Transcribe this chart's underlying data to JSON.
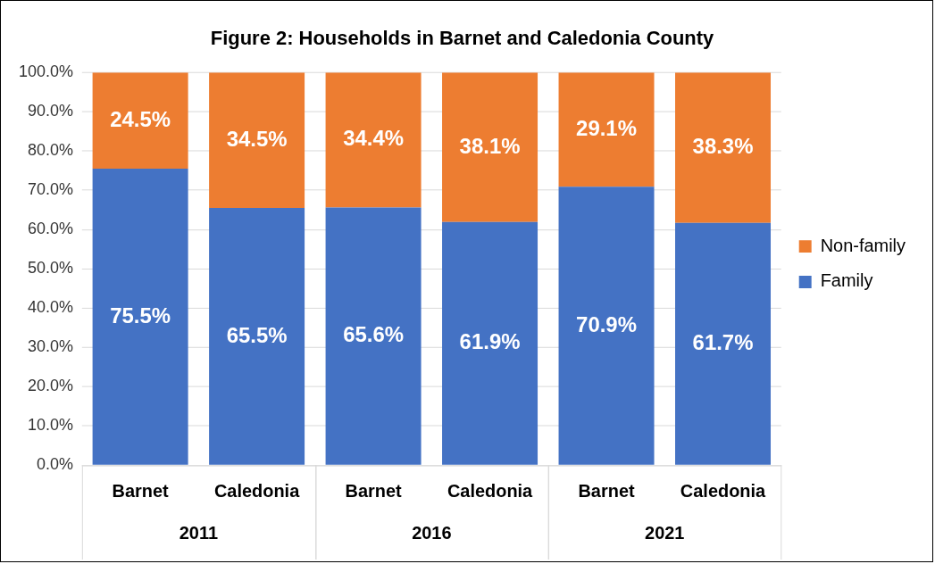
{
  "chart_data": {
    "type": "bar",
    "title": "Figure 2: Households in Barnet and Caledonia County",
    "stacked": true,
    "categories": [
      "Barnet",
      "Caledonia",
      "Barnet",
      "Caledonia",
      "Barnet",
      "Caledonia"
    ],
    "annotations": [
      "2011",
      "2016",
      "2021"
    ],
    "series": [
      {
        "name": "Family",
        "color": "#4472c4",
        "values": [
          75.5,
          65.5,
          65.6,
          61.9,
          70.9,
          61.7
        ],
        "value_labels": [
          "75.5%",
          "65.5%",
          "65.6%",
          "61.9%",
          "70.9%",
          "61.7%"
        ]
      },
      {
        "name": "Non-family",
        "color": "#ed7d31",
        "values": [
          24.5,
          34.5,
          34.4,
          38.1,
          29.1,
          38.3
        ],
        "value_labels": [
          "24.5%",
          "34.5%",
          "34.4%",
          "38.1%",
          "29.1%",
          "38.3%"
        ]
      }
    ],
    "ylim": [
      0,
      100
    ],
    "yticks": [
      {
        "value": 0,
        "label": "0.0%"
      },
      {
        "value": 10,
        "label": "10.0%"
      },
      {
        "value": 20,
        "label": "20.0%"
      },
      {
        "value": 30,
        "label": "30.0%"
      },
      {
        "value": 40,
        "label": "40.0%"
      },
      {
        "value": 50,
        "label": "50.0%"
      },
      {
        "value": 60,
        "label": "60.0%"
      },
      {
        "value": 70,
        "label": "70.0%"
      },
      {
        "value": 80,
        "label": "80.0%"
      },
      {
        "value": 90,
        "label": "90.0%"
      },
      {
        "value": 100,
        "label": "100.0%"
      }
    ],
    "grid": "y",
    "legend": "right"
  }
}
